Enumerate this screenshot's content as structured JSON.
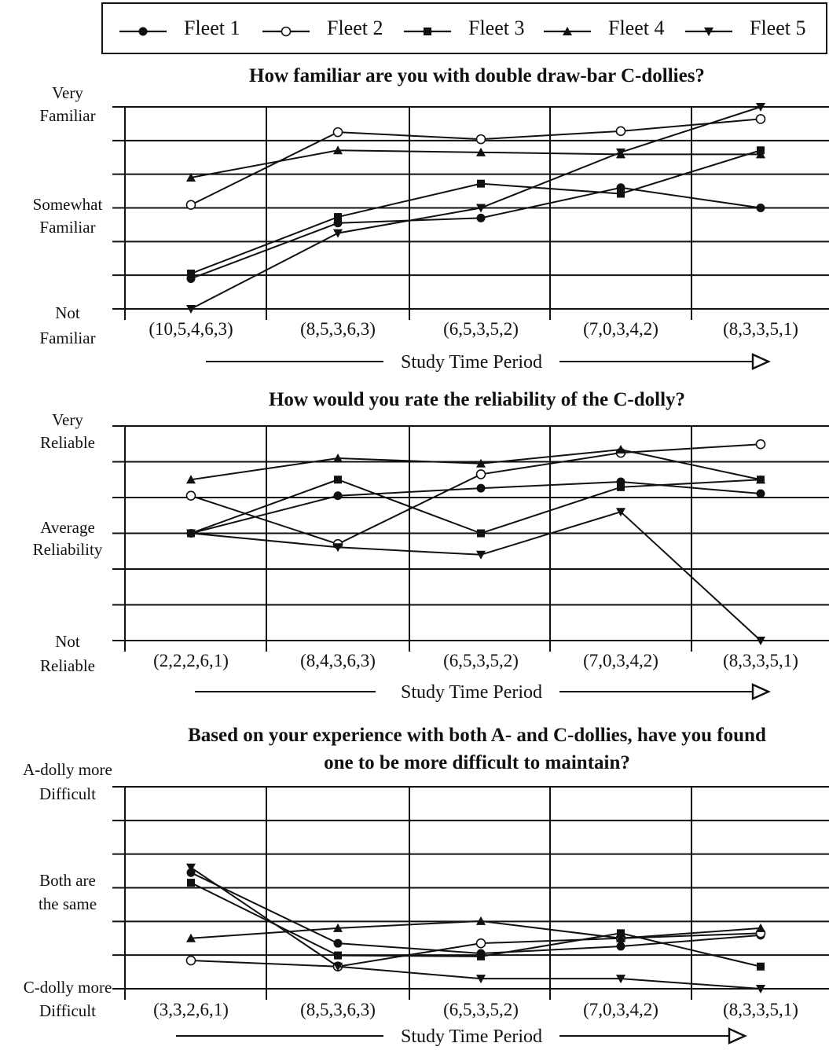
{
  "legend": {
    "entries": [
      {
        "name": "Fleet 1",
        "marker": "filled-circle"
      },
      {
        "name": "Fleet 2",
        "marker": "open-circle"
      },
      {
        "name": "Fleet 3",
        "marker": "filled-square"
      },
      {
        "name": "Fleet 4",
        "marker": "up-triangle"
      },
      {
        "name": "Fleet 5",
        "marker": "down-triangle"
      }
    ]
  },
  "chart_data": [
    {
      "type": "line",
      "title": "How familiar are you with double draw-bar C-dollies?",
      "xlabel": "Study Time Period",
      "ylabel_levels": [
        {
          "lines": [
            "Very",
            "Familiar"
          ],
          "value": 3
        },
        {
          "lines": [
            "Somewhat",
            "Familiar"
          ],
          "value": 2
        },
        {
          "lines": [
            "Not",
            "Familiar"
          ],
          "value": 1
        }
      ],
      "ylim": [
        1,
        3
      ],
      "grid": true,
      "categories": [
        "(10,5,4,6,3)",
        "(8,5,3,6,3)",
        "(6,5,3,5,2)",
        "(7,0,3,4,2)",
        "(8,3,3,5,1)"
      ],
      "series": [
        {
          "name": "Fleet 1",
          "values": [
            1.3,
            1.85,
            1.9,
            2.2,
            2.0
          ]
        },
        {
          "name": "Fleet 2",
          "values": [
            2.03,
            2.75,
            2.68,
            2.76,
            2.88
          ]
        },
        {
          "name": "Fleet 3",
          "values": [
            1.35,
            1.91,
            2.24,
            2.14,
            2.57
          ]
        },
        {
          "name": "Fleet 4",
          "values": [
            2.3,
            2.57,
            2.55,
            2.53,
            2.53
          ]
        },
        {
          "name": "Fleet 5",
          "values": [
            1.0,
            1.75,
            2.0,
            2.55,
            3.0
          ]
        }
      ]
    },
    {
      "type": "line",
      "title": "How would you rate the reliability of the C-dolly?",
      "xlabel": "Study Time Period",
      "ylabel_levels": [
        {
          "lines": [
            "Very",
            "Reliable"
          ],
          "value": 3
        },
        {
          "lines": [
            "Average",
            "Reliability"
          ],
          "value": 2
        },
        {
          "lines": [
            "Not",
            "Reliable"
          ],
          "value": 1
        }
      ],
      "ylim": [
        1,
        3
      ],
      "grid": true,
      "categories": [
        "(2,2,2,6,1)",
        "(8,4,3,6,3)",
        "(6,5,3,5,2)",
        "(7,0,3,4,2)",
        "(8,3,3,5,1)"
      ],
      "series": [
        {
          "name": "Fleet 1",
          "values": [
            2.0,
            2.35,
            2.42,
            2.48,
            2.37
          ]
        },
        {
          "name": "Fleet 2",
          "values": [
            2.35,
            1.9,
            2.55,
            2.75,
            2.83
          ]
        },
        {
          "name": "Fleet 3",
          "values": [
            2.0,
            2.5,
            2.0,
            2.43,
            2.5
          ]
        },
        {
          "name": "Fleet 4",
          "values": [
            2.5,
            2.7,
            2.65,
            2.78,
            2.5
          ]
        },
        {
          "name": "Fleet 5",
          "values": [
            2.0,
            1.87,
            1.8,
            2.2,
            1.0
          ]
        }
      ]
    },
    {
      "type": "line",
      "title": "Based on your experience with both A- and C-dollies, have you found one to be more difficult to maintain?",
      "title_lines": [
        "Based on your experience with both A- and C-dollies, have you found",
        "one to be more difficult to maintain?"
      ],
      "xlabel": "Study Time Period",
      "ylabel_levels": [
        {
          "lines": [
            "A-dolly more",
            "Difficult"
          ],
          "value": 3
        },
        {
          "lines": [
            "Both are",
            "the same"
          ],
          "value": 2
        },
        {
          "lines": [
            "C-dolly more",
            "Difficult"
          ],
          "value": 1
        }
      ],
      "ylim": [
        1,
        3
      ],
      "grid": true,
      "categories": [
        "(3,3,2,6,1)",
        "(8,5,3,6,3)",
        "(6,5,3,5,2)",
        "(7,0,3,4,2)",
        "(8,3,3,5,1)"
      ],
      "series": [
        {
          "name": "Fleet 1",
          "values": [
            2.15,
            1.45,
            1.35,
            1.42,
            1.53
          ]
        },
        {
          "name": "Fleet 2",
          "values": [
            1.28,
            1.22,
            1.45,
            1.5,
            1.55
          ]
        },
        {
          "name": "Fleet 3",
          "values": [
            2.05,
            1.33,
            1.32,
            1.55,
            1.22
          ]
        },
        {
          "name": "Fleet 4",
          "values": [
            1.5,
            1.6,
            1.67,
            1.5,
            1.6
          ]
        },
        {
          "name": "Fleet 5",
          "values": [
            2.2,
            1.22,
            1.1,
            1.1,
            1.0
          ]
        }
      ]
    }
  ]
}
